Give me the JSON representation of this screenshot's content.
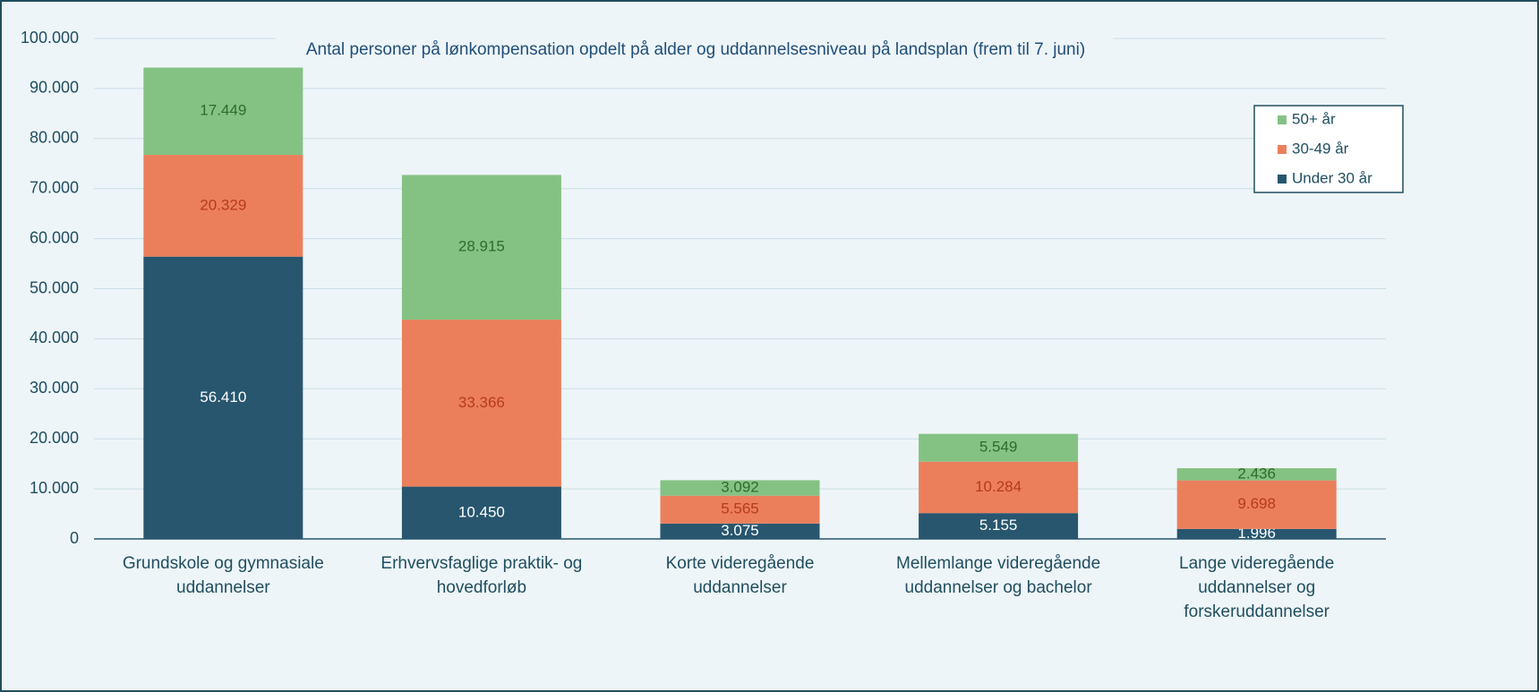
{
  "chart_data": {
    "type": "stacked_bar",
    "title": "Antal personer på lønkompensation opdelt på alder og uddannelsesniveau på landsplan (frem til 7. juni)",
    "categories": [
      "Grundskole og gymnasiale uddannelser",
      "Erhvervsfaglige praktik- og hovedforløb",
      "Korte videregående uddannelser",
      "Mellemlange videregående uddannelser og bachelor",
      "Lange videregående uddannelser og forskeruddannelser"
    ],
    "series": [
      {
        "name": "Under 30 år",
        "color": "#27566e",
        "values": [
          56410,
          10450,
          3075,
          5155,
          1996
        ],
        "value_labels": [
          "56.410",
          "10.450",
          "3.075",
          "5.155",
          "1.996"
        ]
      },
      {
        "name": "30-49 år",
        "color": "#eb7f5c",
        "values": [
          20329,
          33366,
          5565,
          10284,
          9698
        ],
        "value_labels": [
          "20.329",
          "33.366",
          "5.565",
          "10.284",
          "9.698"
        ]
      },
      {
        "name": "50+ år",
        "color": "#84c283",
        "values": [
          17449,
          28915,
          3092,
          5549,
          2436
        ],
        "value_labels": [
          "17.449",
          "28.915",
          "3.092",
          "5.549",
          "2.436"
        ]
      }
    ],
    "ylim": [
      0,
      100000
    ],
    "yticks": [
      0,
      {
        "value": 10000,
        "label": "10.000"
      },
      {
        "value": 20000,
        "label": "20.000"
      },
      {
        "value": 30000,
        "label": "30.000"
      },
      {
        "value": 40000,
        "label": "40.000"
      },
      {
        "value": 50000,
        "label": "50.000"
      },
      {
        "value": 60000,
        "label": "60.000"
      },
      {
        "value": 70000,
        "label": "70.000"
      },
      {
        "value": 80000,
        "label": "80.000"
      },
      {
        "value": 90000,
        "label": "90.000"
      },
      {
        "value": 100000,
        "label": "100.000"
      }
    ],
    "grid": true,
    "legend": "upper right"
  }
}
